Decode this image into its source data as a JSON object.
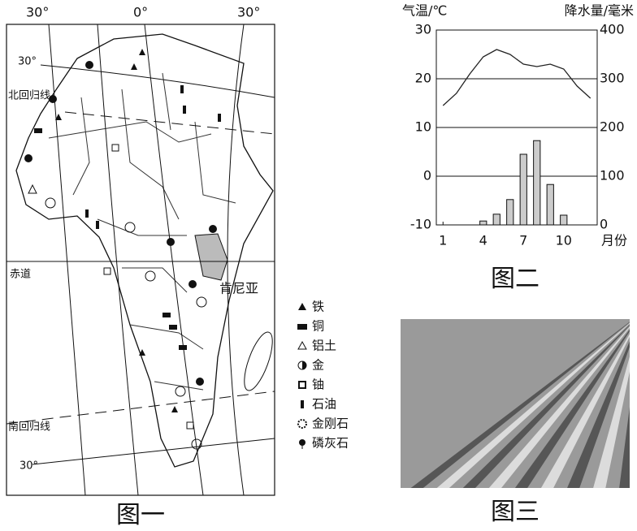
{
  "map": {
    "top_labels": [
      "30°",
      "0°",
      "30°"
    ],
    "lat_labels": {
      "north_30": "30°",
      "tropic_north": "北回归线",
      "equator": "赤道",
      "tropic_south": "南回归线",
      "south_30": "30°"
    },
    "country": "肯尼亚",
    "legend": [
      "铁",
      "铜",
      "铝土",
      "金",
      "铀",
      "石油",
      "金刚石",
      "磷灰石"
    ],
    "caption": "图一"
  },
  "chart_data": {
    "type": "combo",
    "y_label": "气温/℃",
    "y2_label": "降水量/毫米",
    "x_label": "月份",
    "x": [
      1,
      2,
      3,
      4,
      5,
      6,
      7,
      8,
      9,
      10,
      11,
      12
    ],
    "xlim": [
      0.5,
      12.5
    ],
    "xticks": [
      1,
      4,
      7,
      10
    ],
    "ylim": [
      -10,
      30
    ],
    "yticks": [
      -10,
      0,
      10,
      20,
      30
    ],
    "y2lim": [
      0,
      400
    ],
    "y2ticks": [
      0,
      100,
      200,
      300,
      400
    ],
    "grid": true,
    "series": [
      {
        "type": "line",
        "color": "#222222",
        "values": [
          14.5,
          17,
          21,
          24.5,
          26,
          25,
          23,
          22.5,
          23,
          22,
          18.5,
          16
        ]
      },
      {
        "type": "bar",
        "axis": "y2",
        "color": "#cccccc",
        "values": [
          0,
          0,
          0,
          8,
          22,
          52,
          145,
          173,
          83,
          20,
          0,
          0
        ]
      }
    ],
    "caption": "图二"
  },
  "photo": {
    "caption": "图三"
  }
}
